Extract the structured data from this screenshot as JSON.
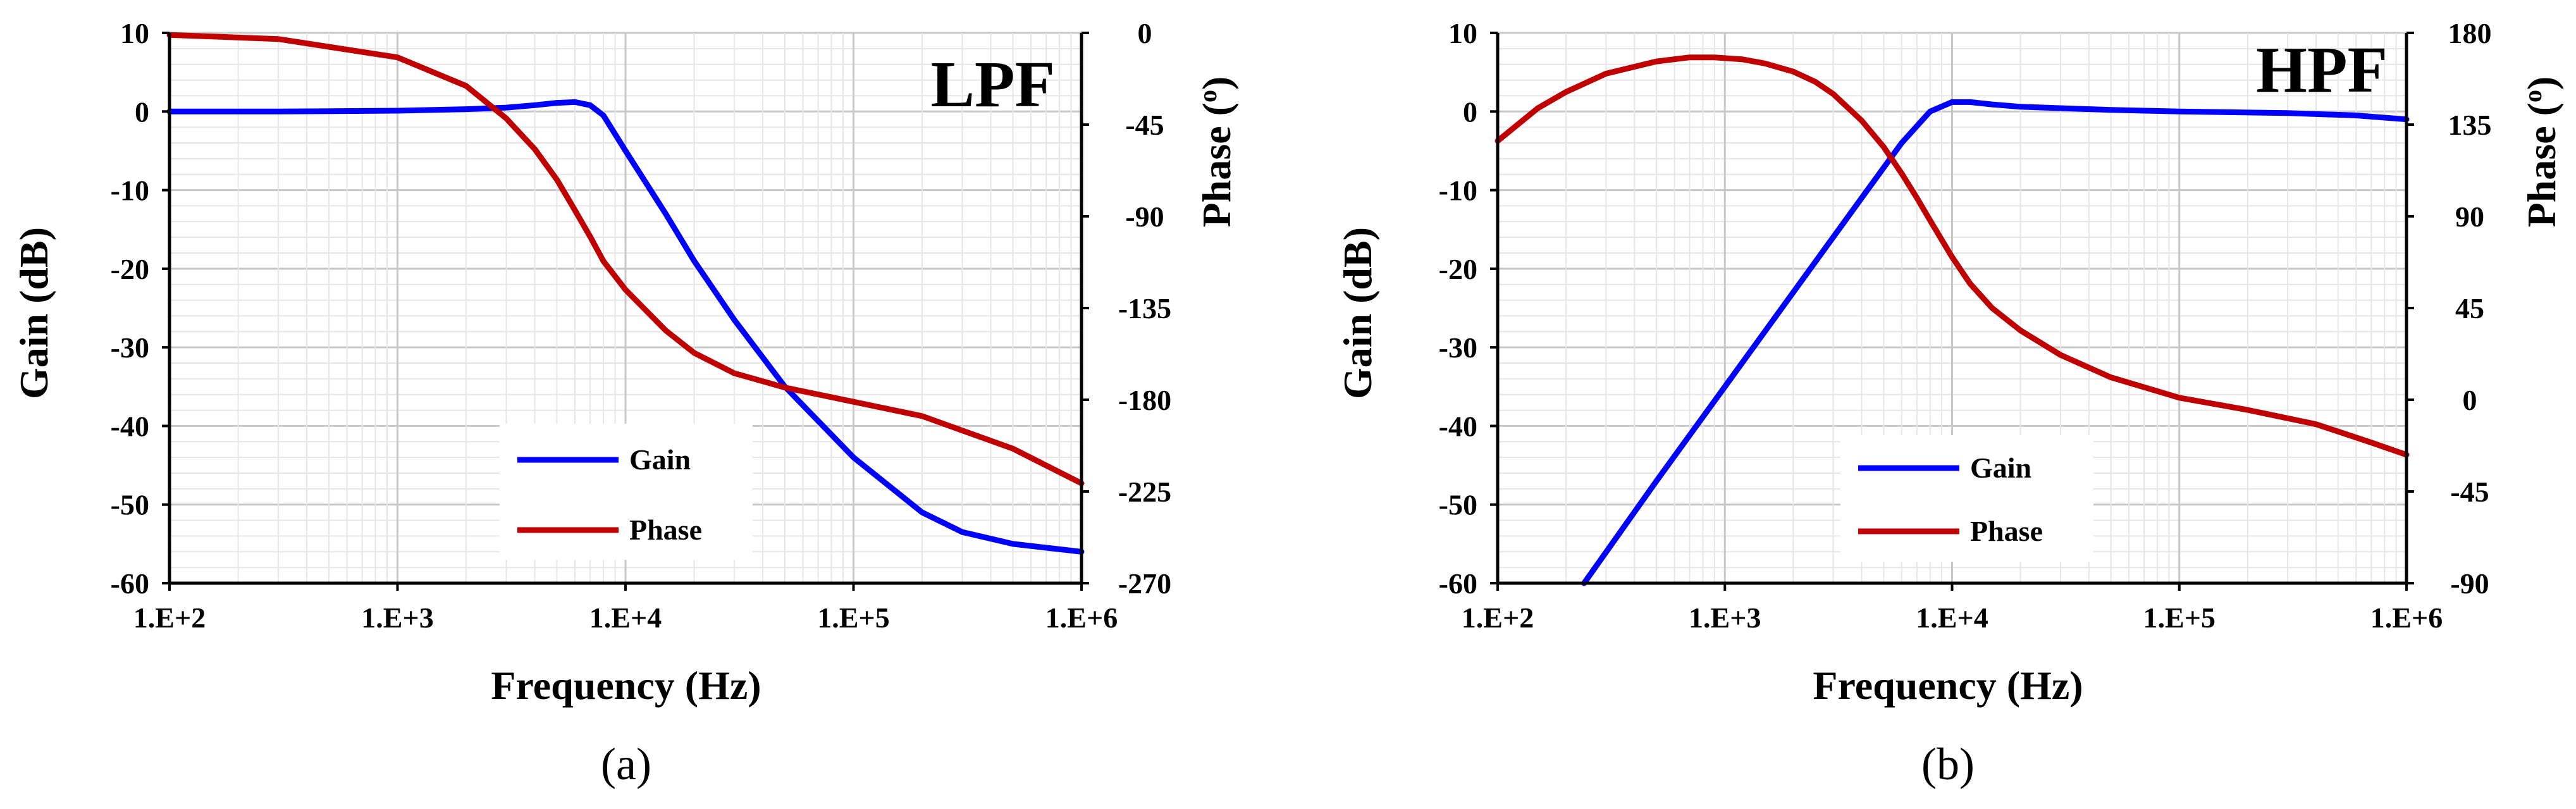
{
  "chart_data": [
    {
      "type": "line",
      "panel": "(a)",
      "inset_label": "LPF",
      "xlabel": "Frequency (Hz)",
      "ylabel": "Gain (dB)",
      "y2label": "Phase (o)",
      "x_scale": "log",
      "xlim": [
        100,
        1000000
      ],
      "ylim": [
        -60,
        10
      ],
      "y2lim": [
        -270,
        0
      ],
      "x_ticks": [
        "1.E+2",
        "1.E+3",
        "1.E+4",
        "1.E+5",
        "1.E+6"
      ],
      "y_ticks": [
        "10",
        "0",
        "-10",
        "-20",
        "-30",
        "-40",
        "-50",
        "-60"
      ],
      "y2_ticks": [
        "0",
        "-45",
        "-90",
        "-135",
        "-180",
        "-225",
        "-270"
      ],
      "grid": true,
      "legend": "bottom-center",
      "series": [
        {
          "name": "Gain",
          "axis": "left",
          "color": "#0000ff",
          "x": [
            100,
            300,
            1000,
            2000,
            3000,
            4000,
            5000,
            6000,
            7000,
            8000,
            10000,
            15000,
            20000,
            30000,
            50000,
            100000,
            200000,
            300000,
            500000,
            1000000
          ],
          "y": [
            0,
            0,
            0.1,
            0.3,
            0.5,
            0.8,
            1.1,
            1.2,
            0.8,
            -0.5,
            -5,
            -13,
            -19,
            -26.5,
            -35,
            -44,
            -51,
            -53.5,
            -55,
            -56
          ]
        },
        {
          "name": "Phase",
          "axis": "right",
          "color": "#c00000",
          "x": [
            100,
            300,
            1000,
            2000,
            3000,
            4000,
            5000,
            6000,
            7000,
            8000,
            10000,
            15000,
            20000,
            30000,
            50000,
            100000,
            200000,
            500000,
            1000000
          ],
          "y": [
            -1,
            -3,
            -12,
            -26,
            -42,
            -57,
            -72,
            -87,
            -100,
            -112,
            -126,
            -146,
            -157,
            -167,
            -174,
            -181,
            -188,
            -204,
            -221
          ]
        }
      ]
    },
    {
      "type": "line",
      "panel": "(b)",
      "inset_label": "HPF",
      "xlabel": "Frequency (Hz)",
      "ylabel": "Gain (dB)",
      "y2label": "Phase (o)",
      "x_scale": "log",
      "xlim": [
        100,
        1000000
      ],
      "ylim": [
        -60,
        10
      ],
      "y2lim": [
        -90,
        180
      ],
      "x_ticks": [
        "1.E+2",
        "1.E+3",
        "1.E+4",
        "1.E+5",
        "1.E+6"
      ],
      "y_ticks": [
        "10",
        "0",
        "-10",
        "-20",
        "-30",
        "-40",
        "-50",
        "-60"
      ],
      "y2_ticks": [
        "180",
        "135",
        "90",
        "45",
        "0",
        "-45",
        "-90"
      ],
      "grid": true,
      "legend": "bottom-center",
      "series": [
        {
          "name": "Gain",
          "axis": "left",
          "color": "#0000ff",
          "x": [
            240,
            500,
            1000,
            2000,
            4000,
            6000,
            8000,
            10000,
            12000,
            15000,
            20000,
            50000,
            100000,
            300000,
            600000,
            1000000
          ],
          "y": [
            -60,
            -47,
            -35,
            -23,
            -11,
            -4,
            0,
            1.2,
            1.2,
            0.9,
            0.6,
            0.2,
            0,
            -0.2,
            -0.5,
            -1
          ]
        },
        {
          "name": "Phase",
          "axis": "right",
          "color": "#c00000",
          "x": [
            100,
            150,
            200,
            300,
            500,
            700,
            900,
            1200,
            1500,
            2000,
            2500,
            3000,
            4000,
            5000,
            6000,
            7000,
            8000,
            10000,
            12000,
            15000,
            20000,
            30000,
            50000,
            100000,
            200000,
            400000,
            700000,
            1000000
          ],
          "y": [
            127,
            143,
            151,
            160,
            166,
            168,
            168,
            167,
            165,
            161,
            156,
            150,
            137,
            124,
            111,
            99,
            88,
            70,
            57,
            45,
            34,
            22,
            11,
            1,
            -5,
            -12,
            -21,
            -27
          ]
        }
      ]
    }
  ],
  "captions": [
    "(a)",
    "(b)"
  ],
  "legend_labels": {
    "gain": "Gain",
    "phase": "Phase"
  }
}
